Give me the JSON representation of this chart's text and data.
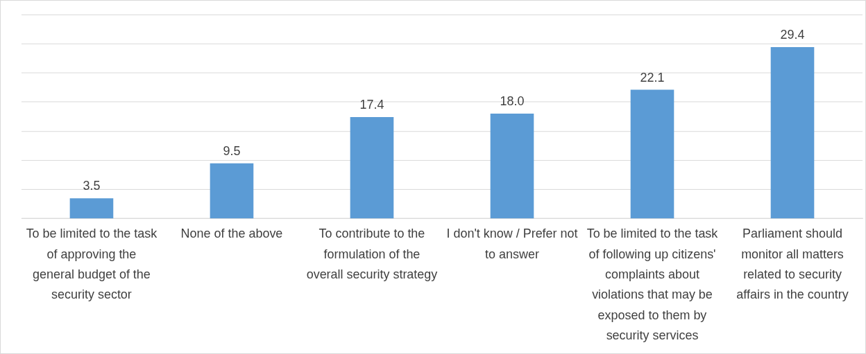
{
  "chart_data": {
    "type": "bar",
    "categories": [
      "To be limited to the task of approving the general budget of the security sector",
      "None of the above",
      "To contribute to the formulation of the overall security strategy",
      "I don't know / Prefer not to answer",
      "To be limited to the task of following up citizens' complaints about violations that may be exposed to them by security services",
      "Parliament should monitor all matters related to security affairs in the country"
    ],
    "values": [
      3.5,
      9.5,
      17.4,
      18.0,
      22.1,
      29.4
    ],
    "value_labels": [
      "3.5",
      "9.5",
      "17.4",
      "18.0",
      "22.1",
      "29.4"
    ],
    "color": "#5b9bd5",
    "ylim": [
      0,
      35
    ],
    "yticks": [
      {
        "value": 0,
        "label": null
      },
      {
        "value": 5,
        "label": null
      },
      {
        "value": 10,
        "label": null
      },
      {
        "value": 15,
        "label": null
      },
      {
        "value": 20,
        "label": null
      },
      {
        "value": 25,
        "label": null
      },
      {
        "value": 30,
        "label": null
      },
      {
        "value": 35,
        "label": null
      }
    ],
    "grid": "y",
    "tick_labels": "x",
    "legend": false
  }
}
